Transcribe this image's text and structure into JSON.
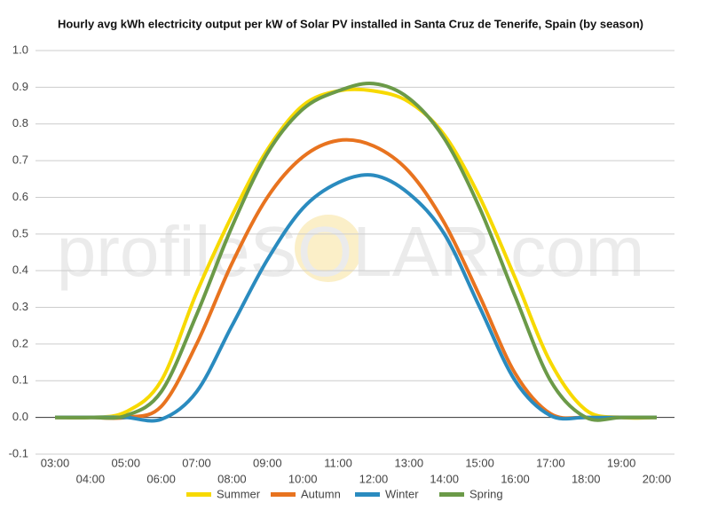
{
  "chart_data": {
    "type": "line",
    "title": "Hourly avg kWh electricity output per kW of Solar PV installed in Santa Cruz de Tenerife, Spain (by season)",
    "watermark": "profileSOLAR.com",
    "categories": [
      "03:00",
      "04:00",
      "05:00",
      "06:00",
      "07:00",
      "08:00",
      "09:00",
      "10:00",
      "11:00",
      "12:00",
      "13:00",
      "14:00",
      "15:00",
      "16:00",
      "17:00",
      "18:00",
      "19:00",
      "20:00"
    ],
    "series": [
      {
        "name": "Summer",
        "color": "#f7d900",
        "values": [
          0,
          0,
          0.015,
          0.1,
          0.34,
          0.55,
          0.73,
          0.85,
          0.89,
          0.89,
          0.86,
          0.77,
          0.6,
          0.38,
          0.15,
          0.02,
          0,
          0
        ]
      },
      {
        "name": "Autumn",
        "color": "#e8731f",
        "values": [
          0,
          0,
          0,
          0.03,
          0.2,
          0.42,
          0.6,
          0.71,
          0.755,
          0.74,
          0.67,
          0.53,
          0.33,
          0.12,
          0.01,
          0,
          0,
          0
        ]
      },
      {
        "name": "Winter",
        "color": "#2a8bbf",
        "values": [
          0,
          0,
          0,
          -0.005,
          0.07,
          0.25,
          0.43,
          0.57,
          0.64,
          0.66,
          0.61,
          0.5,
          0.3,
          0.1,
          0.005,
          0,
          0,
          0
        ]
      },
      {
        "name": "Spring",
        "color": "#6b9a48",
        "values": [
          0,
          0,
          0.005,
          0.07,
          0.28,
          0.52,
          0.72,
          0.84,
          0.89,
          0.91,
          0.87,
          0.76,
          0.57,
          0.33,
          0.1,
          0,
          0,
          0
        ]
      }
    ],
    "ylim": [
      -0.1,
      1.0
    ],
    "yticks": [
      -0.1,
      {
        "value": 0,
        "label": "0.0"
      },
      0.1,
      0.2,
      0.3,
      0.4,
      0.5,
      0.6,
      0.7,
      0.8,
      0.9,
      {
        "value": 1,
        "label": "1.0"
      }
    ],
    "grid": true
  }
}
